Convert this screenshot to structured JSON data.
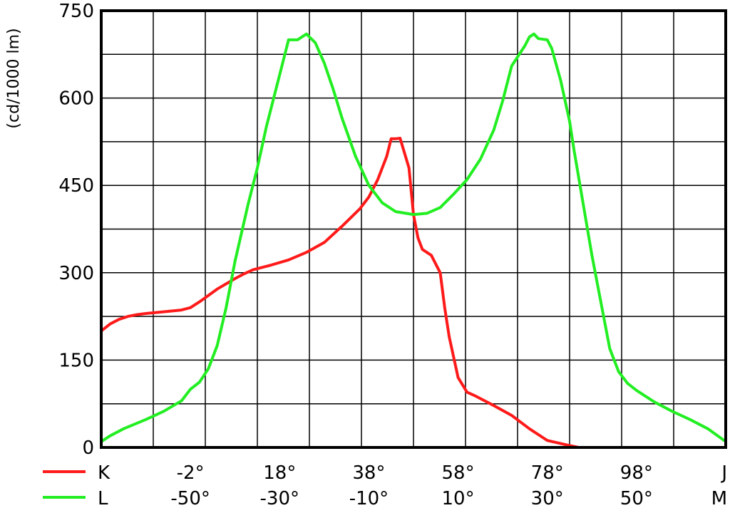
{
  "chart_data": {
    "type": "line",
    "title": "",
    "ylabel": "(cd/1000 lm)",
    "ylim": [
      0,
      750
    ],
    "y_ticks": [
      "750",
      "600",
      "450",
      "300",
      "150",
      "0"
    ],
    "y_tick_values": [
      750,
      600,
      450,
      300,
      150,
      0
    ],
    "grid": true,
    "legend_placement": "bottom-left",
    "x_axes": [
      {
        "series": "K",
        "tick_labels": [
          "-2°",
          "18°",
          "38°",
          "58°",
          "78°",
          "98°",
          "J"
        ],
        "tick_values": [
          -2,
          18,
          38,
          58,
          78,
          98,
          118
        ]
      },
      {
        "series": "L",
        "tick_labels": [
          "-50°",
          "-30°",
          "-10°",
          "10°",
          "30°",
          "50°",
          "M"
        ],
        "tick_values": [
          -50,
          -30,
          -10,
          10,
          30,
          50,
          70
        ]
      }
    ],
    "series": [
      {
        "name": "K",
        "color": "#ff1a1a",
        "points": [
          [
            -22,
            200
          ],
          [
            -20,
            212
          ],
          [
            -18,
            220
          ],
          [
            -16,
            225
          ],
          [
            -14,
            228
          ],
          [
            -12,
            230
          ],
          [
            -8,
            233
          ],
          [
            -4,
            236
          ],
          [
            -2,
            240
          ],
          [
            0,
            250
          ],
          [
            4,
            272
          ],
          [
            8,
            290
          ],
          [
            10,
            298
          ],
          [
            12,
            305
          ],
          [
            16,
            313
          ],
          [
            20,
            322
          ],
          [
            24,
            335
          ],
          [
            28,
            352
          ],
          [
            32,
            380
          ],
          [
            34,
            395
          ],
          [
            36,
            410
          ],
          [
            38,
            430
          ],
          [
            40,
            460
          ],
          [
            42,
            500
          ],
          [
            43,
            530
          ],
          [
            44,
            530
          ],
          [
            45,
            531
          ],
          [
            47,
            480
          ],
          [
            48,
            400
          ],
          [
            49,
            360
          ],
          [
            50,
            340
          ],
          [
            52,
            330
          ],
          [
            54,
            300
          ],
          [
            55,
            240
          ],
          [
            56,
            190
          ],
          [
            58,
            120
          ],
          [
            60,
            95
          ],
          [
            62,
            88
          ],
          [
            66,
            72
          ],
          [
            70,
            55
          ],
          [
            74,
            32
          ],
          [
            78,
            12
          ],
          [
            82,
            5
          ],
          [
            85,
            0
          ]
        ]
      },
      {
        "name": "L",
        "color": "#22ee22",
        "points": [
          [
            -70,
            10
          ],
          [
            -68,
            20
          ],
          [
            -65,
            32
          ],
          [
            -60,
            48
          ],
          [
            -56,
            62
          ],
          [
            -52,
            80
          ],
          [
            -50,
            100
          ],
          [
            -48,
            112
          ],
          [
            -46,
            135
          ],
          [
            -44,
            175
          ],
          [
            -42,
            240
          ],
          [
            -40,
            320
          ],
          [
            -37,
            420
          ],
          [
            -35,
            480
          ],
          [
            -33,
            550
          ],
          [
            -30,
            640
          ],
          [
            -28,
            700
          ],
          [
            -26,
            700
          ],
          [
            -24,
            710
          ],
          [
            -22,
            695
          ],
          [
            -20,
            660
          ],
          [
            -18,
            615
          ],
          [
            -16,
            565
          ],
          [
            -13,
            500
          ],
          [
            -10,
            450
          ],
          [
            -7,
            420
          ],
          [
            -4,
            405
          ],
          [
            0,
            400
          ],
          [
            3,
            402
          ],
          [
            6,
            412
          ],
          [
            9,
            435
          ],
          [
            12,
            460
          ],
          [
            15,
            495
          ],
          [
            18,
            545
          ],
          [
            20,
            595
          ],
          [
            22,
            655
          ],
          [
            25,
            690
          ],
          [
            26,
            705
          ],
          [
            27,
            710
          ],
          [
            28,
            702
          ],
          [
            30,
            700
          ],
          [
            31,
            685
          ],
          [
            33,
            630
          ],
          [
            35,
            560
          ],
          [
            36,
            510
          ],
          [
            38,
            420
          ],
          [
            40,
            330
          ],
          [
            42,
            250
          ],
          [
            44,
            170
          ],
          [
            46,
            130
          ],
          [
            48,
            110
          ],
          [
            50,
            98
          ],
          [
            54,
            78
          ],
          [
            58,
            62
          ],
          [
            62,
            48
          ],
          [
            66,
            32
          ],
          [
            70,
            10
          ]
        ]
      }
    ]
  }
}
